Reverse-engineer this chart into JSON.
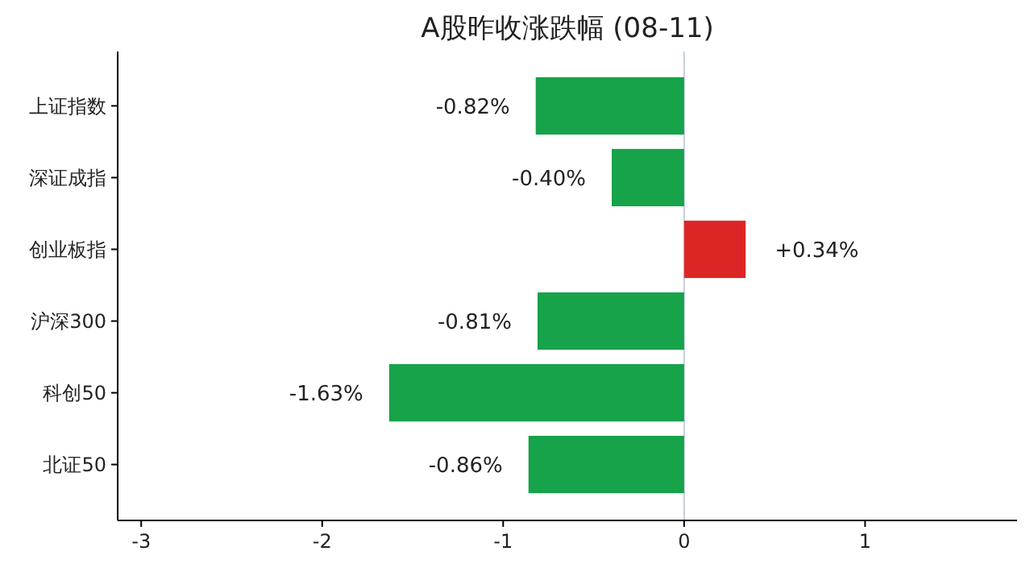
{
  "chart_data": {
    "type": "bar",
    "orientation": "horizontal",
    "title": "A股昨收涨跌幅 (08-11)",
    "categories": [
      "上证指数",
      "深证成指",
      "创业板指",
      "沪深300",
      "科创50",
      "北证50"
    ],
    "values": [
      -0.82,
      -0.4,
      0.34,
      -0.81,
      -1.63,
      -0.86
    ],
    "colors": [
      "#16a34a",
      "#16a34a",
      "#dc2626",
      "#16a34a",
      "#16a34a",
      "#16a34a"
    ],
    "value_labels": [
      "-0.82%",
      "-0.40%",
      "+0.34%",
      "-0.81%",
      "-1.63%",
      "-0.86%"
    ],
    "xlim": [
      -3.13,
      1.84
    ],
    "xticks": [
      -3,
      -2,
      -1,
      0,
      1
    ],
    "ref_lines": [
      {
        "axis": "x",
        "value": 0,
        "color": "#c5cde0"
      }
    ],
    "grid": false
  }
}
